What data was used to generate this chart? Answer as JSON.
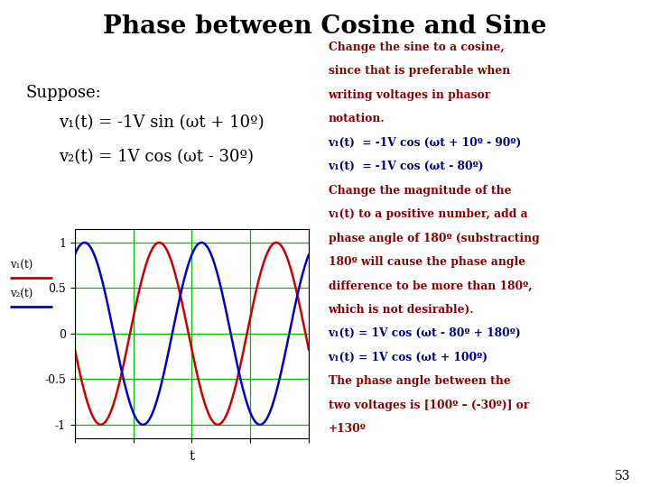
{
  "title": "Phase between Cosine and Sine",
  "title_fontsize": 20,
  "title_fontweight": "bold",
  "background_color": "#ffffff",
  "suppose_text": "Suppose:",
  "v1_text": "v₁(t) = -1V sin (ωt + 10º)",
  "v2_text": "v₂(t) = 1V cos (ωt - 30º)",
  "v1_phase_deg": 10,
  "v1_amplitude": -1,
  "v2_phase_deg": -30,
  "v2_amplitude": 1,
  "plot_color_v1": "#cc0000",
  "plot_color_v2": "#0000cc",
  "grid_color": "#00bb00",
  "xlabel": "t",
  "yticks": [
    -1,
    -0.5,
    0,
    0.5,
    1
  ],
  "right_text_red": "#8B0000",
  "right_text_blue": "#00008B",
  "right_lines": [
    {
      "text": "Change the sine to a cosine,",
      "color": "#8B0000"
    },
    {
      "text": "since that is preferable when",
      "color": "#8B0000"
    },
    {
      "text": "writing voltages in phasor",
      "color": "#8B0000"
    },
    {
      "text": "notation.",
      "color": "#8B0000"
    },
    {
      "text": "v₁(t)  = -1V cos (ωt + 10º - 90º)",
      "color": "#00008B"
    },
    {
      "text": "v₁(t)  = -1V cos (ωt - 80º)",
      "color": "#00008B"
    },
    {
      "text": "Change the magnitude of the",
      "color": "#8B0000"
    },
    {
      "text": "v₁(t) to a positive number, add a",
      "color": "#8B0000"
    },
    {
      "text": "phase angle of 180º (substracting",
      "color": "#8B0000"
    },
    {
      "text": "180º will cause the phase angle",
      "color": "#8B0000"
    },
    {
      "text": "difference to be more than 180º,",
      "color": "#8B0000"
    },
    {
      "text": "which is not desirable).",
      "color": "#8B0000"
    },
    {
      "text": "v₁(t) = 1V cos (ωt - 80º + 180º)",
      "color": "#00008B"
    },
    {
      "text": "v₁(t) = 1V cos (ωt + 100º)",
      "color": "#00008B"
    },
    {
      "text": "The phase angle between the",
      "color": "#8B0000"
    },
    {
      "text": "two voltages is [100º – (-30º)] or",
      "color": "#8B0000"
    },
    {
      "text": "+130º",
      "color": "#8B0000"
    }
  ],
  "page_number": "53"
}
